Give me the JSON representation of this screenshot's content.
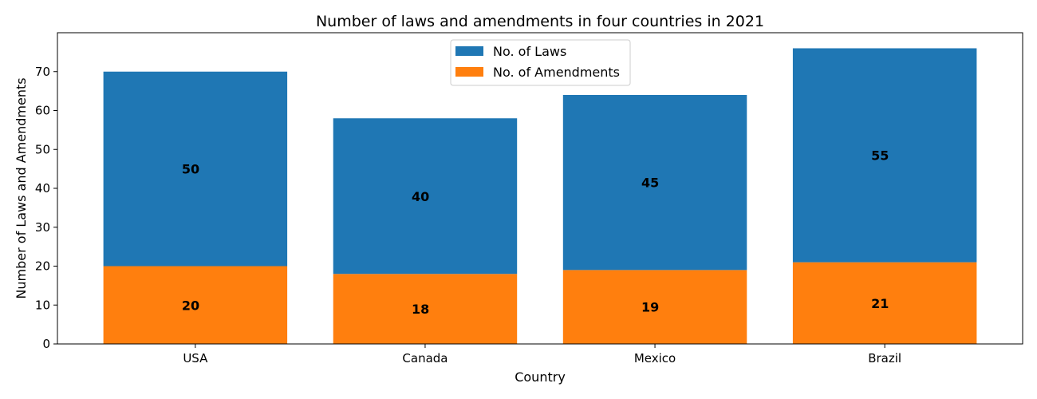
{
  "chart_data": {
    "type": "bar",
    "stacked": true,
    "title": "Number of laws and amendments in four countries in 2021",
    "xlabel": "Country",
    "ylabel": "Number of Laws and Amendments",
    "categories": [
      "USA",
      "Canada",
      "Mexico",
      "Brazil"
    ],
    "series": [
      {
        "name": "No. of Amendments",
        "values": [
          20,
          18,
          19,
          21
        ],
        "color": "#ff7f0e"
      },
      {
        "name": "No. of Laws",
        "values": [
          50,
          40,
          45,
          55
        ],
        "color": "#1f77b4"
      }
    ],
    "ylim": [
      0,
      80
    ],
    "yticks": [
      0,
      10,
      20,
      30,
      40,
      50,
      60,
      70
    ],
    "legend_position": "top-center",
    "legend_order": [
      "No. of Laws",
      "No. of Amendments"
    ],
    "grid": false
  }
}
